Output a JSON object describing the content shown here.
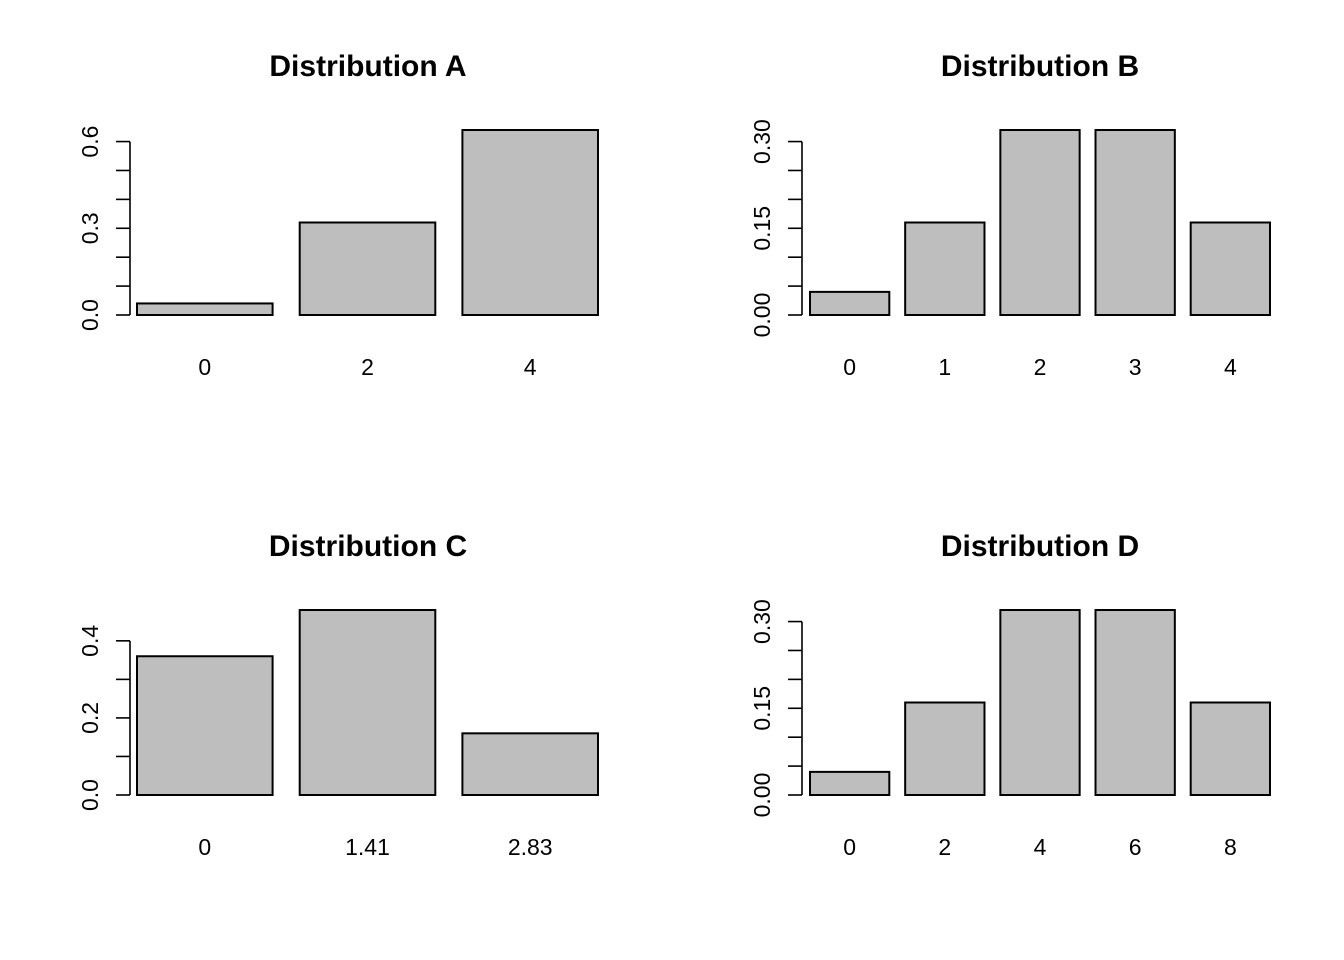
{
  "chart_data": [
    {
      "type": "bar",
      "title": "Distribution A",
      "categories": [
        "0",
        "2",
        "4"
      ],
      "values": [
        0.04,
        0.32,
        0.64
      ],
      "xlabel": "",
      "ylabel": "",
      "ylim": [
        0,
        0.6
      ],
      "yticks": [
        0.0,
        0.3,
        0.6
      ],
      "ytick_labels": [
        "0.0",
        "0.3",
        "0.6"
      ],
      "minor_step": 0.1,
      "bar_color": "#bebebe",
      "grid": false
    },
    {
      "type": "bar",
      "title": "Distribution B",
      "categories": [
        "0",
        "1",
        "2",
        "3",
        "4"
      ],
      "values": [
        0.04,
        0.16,
        0.32,
        0.32,
        0.16
      ],
      "xlabel": "",
      "ylabel": "",
      "ylim": [
        0,
        0.3
      ],
      "yticks": [
        0.0,
        0.15,
        0.3
      ],
      "ytick_labels": [
        "0.00",
        "0.15",
        "0.30"
      ],
      "minor_step": 0.05,
      "bar_color": "#bebebe",
      "grid": false
    },
    {
      "type": "bar",
      "title": "Distribution C",
      "categories": [
        "0",
        "1.41",
        "2.83"
      ],
      "values": [
        0.36,
        0.48,
        0.16
      ],
      "xlabel": "",
      "ylabel": "",
      "ylim": [
        0,
        0.4
      ],
      "yticks": [
        0.0,
        0.2,
        0.4
      ],
      "ytick_labels": [
        "0.0",
        "0.2",
        "0.4"
      ],
      "minor_step": 0.1,
      "bar_color": "#bebebe",
      "grid": false
    },
    {
      "type": "bar",
      "title": "Distribution D",
      "categories": [
        "0",
        "2",
        "4",
        "6",
        "8"
      ],
      "values": [
        0.04,
        0.16,
        0.32,
        0.32,
        0.16
      ],
      "xlabel": "",
      "ylabel": "",
      "ylim": [
        0,
        0.3
      ],
      "yticks": [
        0.0,
        0.15,
        0.3
      ],
      "ytick_labels": [
        "0.00",
        "0.15",
        "0.30"
      ],
      "minor_step": 0.05,
      "bar_color": "#bebebe",
      "grid": false
    }
  ]
}
